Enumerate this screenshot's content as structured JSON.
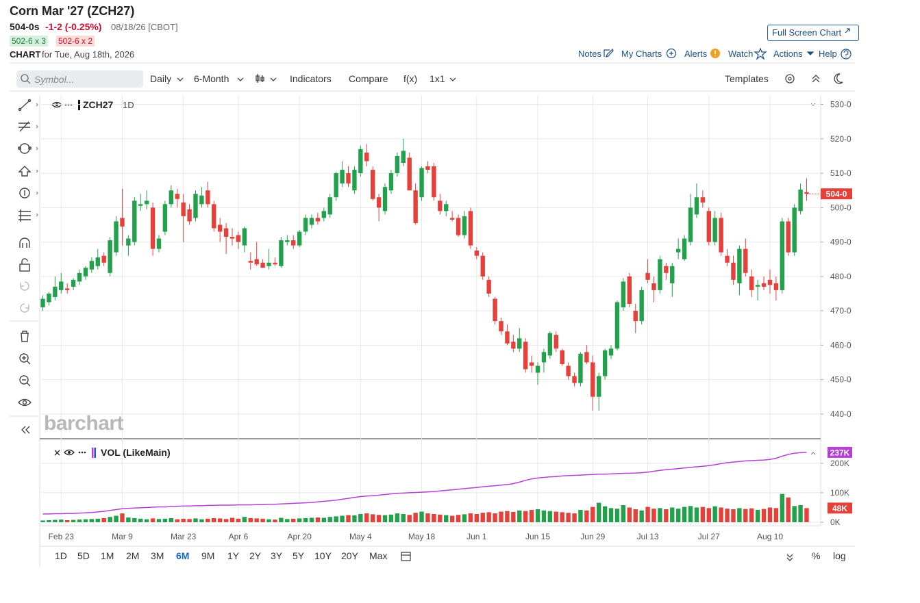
{
  "header": {
    "title": "Corn Mar '27 (ZCH27)",
    "last": "504-0s",
    "change": "-1-2 (-0.25%)",
    "timestamp": "08/18/26 [CBOT]",
    "bid": "502-6 x 3",
    "ask": "502-6 x 2",
    "chart_label": "CHART",
    "chart_date": "for Tue, Aug 18th, 2026",
    "full_screen": "Full Screen Chart"
  },
  "nav": [
    "Notes",
    "My Charts",
    "Alerts",
    "Watch",
    "Actions",
    "Help"
  ],
  "toolbar": {
    "symbol_placeholder": "Symbol...",
    "items": [
      "Daily",
      "6-Month",
      "Indicators",
      "Compare",
      "f(x)",
      "1x1"
    ],
    "templates": "Templates"
  },
  "ranges": [
    "1D",
    "5D",
    "1M",
    "2M",
    "3M",
    "6M",
    "9M",
    "1Y",
    "2Y",
    "3Y",
    "5Y",
    "10Y",
    "20Y",
    "Max"
  ],
  "selected_range": "6M",
  "scale_options": [
    "%",
    "log"
  ],
  "watermark": "barchart",
  "chart_data": {
    "type": "candlestick",
    "symbol": "ZCH27",
    "interval": "1D",
    "categories": [
      null,
      null,
      null,
      "Feb 23",
      null,
      null,
      null,
      null,
      null,
      null,
      null,
      null,
      null,
      "Mar 9",
      null,
      null,
      null,
      null,
      null,
      null,
      null,
      null,
      null,
      "Mar 23",
      null,
      null,
      null,
      null,
      null,
      null,
      null,
      null,
      "Apr 6",
      null,
      null,
      null,
      null,
      null,
      null,
      null,
      null,
      null,
      "Apr 20",
      null,
      null,
      null,
      null,
      null,
      null,
      null,
      null,
      null,
      "May 4",
      null,
      null,
      null,
      null,
      null,
      null,
      null,
      null,
      null,
      "May 18",
      null,
      null,
      null,
      null,
      null,
      null,
      null,
      null,
      "Jun 1",
      null,
      null,
      null,
      null,
      null,
      null,
      null,
      null,
      null,
      "Jun 15",
      null,
      null,
      null,
      null,
      null,
      null,
      null,
      null,
      "Jun 29",
      null,
      null,
      null,
      null,
      null,
      null,
      null,
      null,
      "Jul 13",
      null,
      null,
      null,
      null,
      null,
      null,
      null,
      null,
      null,
      "Jul 27",
      null,
      null,
      null,
      null,
      null,
      null,
      null,
      null,
      null,
      "Aug 10",
      null,
      null,
      null,
      null,
      null,
      null
    ],
    "open": [
      471,
      472.5,
      474,
      476,
      476.5,
      477,
      478.5,
      480,
      482,
      483,
      486,
      481,
      487,
      497,
      489,
      490,
      500.5,
      501,
      500,
      488,
      493,
      501,
      504,
      501.5,
      499.5,
      497,
      501,
      505,
      501,
      495,
      494,
      491.5,
      492,
      489,
      484.5,
      485,
      484,
      483,
      484,
      483,
      490,
      490.5,
      489,
      493,
      495,
      497,
      497,
      498,
      503,
      507,
      510,
      505,
      510,
      516,
      511,
      503,
      499,
      505,
      510,
      513,
      514.5,
      505,
      503,
      512,
      512,
      502,
      499,
      497,
      497,
      492,
      499,
      487.5,
      486,
      479,
      473.5,
      467,
      464,
      461,
      459,
      461,
      455,
      452,
      455,
      457,
      463,
      458.5,
      454,
      451,
      449,
      458,
      455,
      445,
      451,
      457,
      459,
      471,
      480,
      470,
      467,
      481,
      478,
      476,
      483,
      478,
      487,
      485,
      490,
      498,
      503,
      499,
      490,
      497,
      486,
      484,
      478,
      488,
      480,
      477,
      478,
      479,
      478,
      476,
      496,
      487,
      499,
      504.5
    ],
    "high": [
      474.5,
      475.5,
      480,
      481,
      478,
      479.5,
      482,
      483,
      485.5,
      488,
      487,
      491.5,
      497.5,
      505.5,
      492,
      503,
      504,
      505,
      501.5,
      492,
      502,
      506.5,
      505.5,
      504,
      501,
      505,
      506,
      507.5,
      502,
      497,
      495.5,
      494,
      493,
      494.5,
      487,
      490,
      485,
      488,
      485.5,
      491.5,
      492,
      492,
      493.5,
      498,
      498,
      498.5,
      500,
      504,
      510.5,
      513.5,
      512,
      512,
      518,
      518.5,
      512,
      504,
      507,
      511,
      516,
      520,
      516,
      507,
      512,
      513.5,
      513,
      504,
      502,
      499,
      498,
      499,
      500,
      488.5,
      487,
      480,
      474,
      468,
      466,
      463,
      465,
      462,
      457,
      455,
      459,
      464,
      464,
      459,
      455,
      452,
      458,
      460,
      457,
      452,
      459,
      460,
      473,
      479.5,
      481,
      472,
      477,
      485,
      480,
      486,
      484,
      484,
      491,
      492,
      504,
      507,
      505,
      500,
      499,
      498.5,
      488,
      486,
      489,
      491,
      482,
      479,
      480,
      482,
      480,
      497,
      497,
      501,
      507,
      508.5
    ],
    "low": [
      470,
      471.5,
      473,
      475,
      475,
      476,
      477.5,
      479,
      481,
      482,
      483,
      480,
      486,
      489,
      486,
      489,
      499,
      499.5,
      486,
      487,
      492,
      500,
      500,
      490,
      495,
      496,
      500,
      500,
      493,
      490,
      486.5,
      489,
      488,
      487,
      482,
      483,
      482.5,
      482,
      483,
      482.5,
      489,
      488,
      488.5,
      492,
      494,
      495,
      496,
      497,
      502,
      506,
      506,
      504,
      509,
      512,
      502,
      496,
      498,
      504,
      509,
      512,
      505,
      495,
      502,
      510,
      502,
      498,
      497.5,
      496,
      491.5,
      491,
      488,
      485,
      479,
      474,
      466,
      463,
      460,
      458,
      458,
      452,
      452,
      448.5,
      452,
      456,
      458,
      454,
      450,
      448,
      448,
      454.5,
      441,
      441,
      450,
      456,
      458.5,
      470,
      471,
      463.5,
      466,
      478,
      472.5,
      475,
      479,
      474,
      485,
      484.5,
      489,
      497,
      500,
      489,
      489,
      486,
      483,
      477.5,
      474.5,
      480,
      474,
      473,
      476,
      475,
      473,
      475,
      486,
      486,
      498,
      502
    ],
    "close": [
      473.5,
      475,
      477,
      478.5,
      476,
      479,
      481,
      482.5,
      484.5,
      485.5,
      484,
      490.5,
      496,
      494.5,
      491,
      502,
      501,
      502,
      488,
      491,
      501,
      505,
      502.5,
      497.5,
      496,
      504,
      503.5,
      501,
      494,
      493,
      491.5,
      491,
      490,
      494,
      484,
      483.5,
      482.5,
      484,
      483.5,
      490.5,
      490.5,
      489,
      493,
      497,
      497,
      496,
      499,
      503,
      510,
      511,
      507,
      511,
      517,
      513.5,
      502.5,
      500,
      506,
      510,
      515,
      516.5,
      505,
      495.5,
      511.5,
      511,
      503,
      499,
      501,
      496.5,
      492,
      497.5,
      489,
      486,
      480,
      475,
      467,
      464,
      460.5,
      459,
      462,
      453,
      454,
      454,
      458,
      463.5,
      459,
      454.5,
      451,
      449,
      457.5,
      455,
      445,
      451,
      458.5,
      459,
      472.5,
      478.5,
      472,
      467,
      476,
      479,
      476,
      485,
      481,
      483,
      488,
      491,
      500,
      503,
      501.5,
      490,
      497,
      487,
      484,
      479,
      488,
      481,
      476,
      477.5,
      477,
      477.5,
      476,
      496,
      487,
      500,
      505.25,
      504
    ],
    "last_label": "504-0",
    "up_color": "#22a04b",
    "down_color": "#e5403a",
    "ylim": [
      433,
      532.5
    ],
    "yticks": [
      {
        "value": 440,
        "label": "440-0"
      },
      {
        "value": 450,
        "label": "450-0"
      },
      {
        "value": 460,
        "label": "460-0"
      },
      {
        "value": 470,
        "label": "470-0"
      },
      {
        "value": 480,
        "label": "480-0"
      },
      {
        "value": 490,
        "label": "490-0"
      },
      {
        "value": 500,
        "label": "500-0"
      },
      {
        "value": 510,
        "label": "510-0"
      },
      {
        "value": 520,
        "label": "520-0"
      },
      {
        "value": 530,
        "label": "530-0"
      }
    ],
    "grid": true,
    "volume": {
      "title": "VOL (LikeMain)",
      "values": [
        6,
        7,
        8,
        9,
        7,
        8,
        9,
        10,
        11,
        12,
        14,
        18,
        22,
        30,
        16,
        14,
        12,
        10,
        13,
        11,
        12,
        14,
        10,
        12,
        11,
        13,
        10,
        12,
        14,
        13,
        11,
        15,
        12,
        18,
        14,
        13,
        12,
        10,
        9,
        15,
        11,
        12,
        13,
        14,
        15,
        16,
        15,
        18,
        20,
        22,
        24,
        23,
        28,
        30,
        27,
        25,
        24,
        26,
        30,
        28,
        25,
        32,
        36,
        30,
        28,
        26,
        24,
        22,
        25,
        27,
        30,
        28,
        32,
        34,
        30,
        36,
        38,
        35,
        40,
        38,
        42,
        44,
        40,
        38,
        36,
        34,
        32,
        30,
        42,
        40,
        52,
        66,
        54,
        48,
        46,
        58,
        50,
        44,
        40,
        52,
        46,
        48,
        44,
        50,
        46,
        52,
        55,
        50,
        52,
        48,
        54,
        50,
        46,
        44,
        48,
        45,
        47,
        42,
        45,
        50,
        48,
        96,
        84,
        55,
        58,
        48
      ],
      "last_label": "48K",
      "oi": {
        "color": "#b83fd6",
        "last_label": "237K",
        "values": [
          28,
          28,
          29,
          29,
          30,
          30,
          31,
          32,
          33,
          35,
          37,
          40,
          43,
          46,
          47,
          48,
          49,
          50,
          51,
          52,
          52,
          53,
          54,
          55,
          55,
          56,
          56,
          57,
          57,
          58,
          58,
          58,
          59,
          59,
          59,
          60,
          60,
          61,
          61,
          62,
          63,
          64,
          65,
          66,
          67,
          69,
          71,
          73,
          75,
          78,
          81,
          84,
          87,
          89,
          90,
          92,
          94,
          96,
          98,
          99,
          100,
          101,
          102,
          103,
          104,
          106,
          108,
          110,
          112,
          114,
          116,
          118,
          120,
          122,
          124,
          126,
          128,
          131,
          136,
          142,
          147,
          150,
          152,
          154,
          155,
          157,
          158,
          159,
          160,
          161,
          162,
          163,
          163,
          164,
          165,
          166,
          166,
          167,
          168,
          170,
          173,
          176,
          178,
          180,
          182,
          184,
          186,
          188,
          190,
          192,
          195,
          199,
          202,
          204,
          206,
          208,
          209,
          210,
          211,
          213,
          217,
          224,
          230,
          234,
          236,
          237
        ]
      },
      "ylim": [
        0,
        260
      ],
      "yticks": [
        {
          "value": 0,
          "label": "0K"
        },
        {
          "value": 100,
          "label": "100K"
        },
        {
          "value": 200,
          "label": "200K"
        }
      ]
    }
  }
}
